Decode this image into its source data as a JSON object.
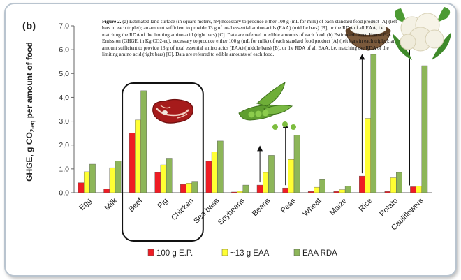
{
  "panel_label": "(b)",
  "caption": {
    "figure_label": "Figure 2.",
    "text": "(a) Estimated land surface (in square meters, m²) necessary to produce either 100 g (mL for milk) of each standard food product [A] (left bars in each triplet); an amount sufficient to provide 13 g of total essential amino acids (EAA) (middle bars) [B], or the RDA of all EAA, i.e. matching the RDA of the limiting amino acid (right bars) [C]. Data are referred to edible amounts of each food. (b) Estimated Green House Gas Emission (GHGE, in Kg CO2-eq), necessary to produce either 100 g (mL for milk) of each standard food product [A] (left bars in each triplet); an amount sufficient to provide 13 g of total essential amino acids (EAA) (middle bars) [B], or the RDA of all EAA, i.e. matching the RDA of the limiting amino acid (right bars) [C]. Data are referred to edible amounts of each food."
  },
  "colors": {
    "series_100g": "#ee1c24",
    "series_13g": "#ffff33",
    "series_rda": "#8db659",
    "frame_border": "#b9c4cf",
    "highlight_box": "#111111"
  },
  "chart_data": {
    "type": "bar",
    "ylabel_main": "GHGE, g CO",
    "ylabel_sub": "2-eq",
    "ylabel_rest": " per amount of food",
    "ylim": [
      0,
      7
    ],
    "yticks": [
      "0,0",
      "1,0",
      "2,0",
      "3,0",
      "4,0",
      "5,0",
      "6,0",
      "7,0"
    ],
    "grid": false,
    "legend_position": "bottom",
    "categories": [
      "Egg",
      "Milk",
      "Beef",
      "Pig",
      "Chicken",
      "Sea bass",
      "Soybeans",
      "Beans",
      "Peas",
      "Wheat",
      "Maize",
      "Rice",
      "Potato",
      "Cauliflowers"
    ],
    "series": [
      {
        "name": "100 g E.P.",
        "values": [
          0.42,
          0.15,
          2.5,
          0.85,
          0.35,
          1.32,
          0.03,
          0.32,
          0.2,
          0.05,
          0.05,
          0.7,
          0.05,
          0.25
        ]
      },
      {
        "name": "~13 g EAA",
        "values": [
          0.88,
          1.05,
          3.05,
          1.17,
          0.4,
          1.72,
          0.06,
          0.85,
          1.4,
          0.23,
          0.13,
          3.12,
          0.63,
          0.27
        ]
      },
      {
        "name": "EAA RDA",
        "values": [
          1.2,
          1.33,
          4.28,
          1.45,
          0.48,
          2.17,
          0.32,
          1.57,
          2.42,
          0.55,
          0.27,
          5.8,
          0.85,
          5.33
        ]
      }
    ]
  },
  "decorations": {
    "steak": "steak-image",
    "peas": "peas-image",
    "rice": "rice-bowl-image",
    "cauliflower": "cauliflower-image",
    "arrows": "up-arrow-icon"
  }
}
